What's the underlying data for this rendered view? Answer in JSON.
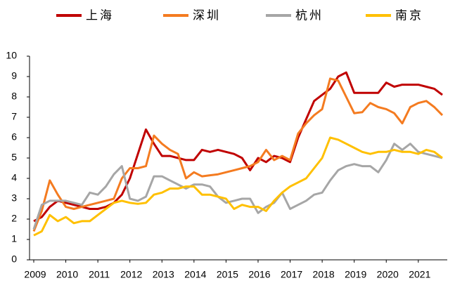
{
  "chart_data": {
    "type": "line",
    "x": [
      2009,
      2009.25,
      2009.5,
      2009.75,
      2010,
      2010.25,
      2010.5,
      2010.75,
      2011,
      2011.25,
      2011.5,
      2011.75,
      2012,
      2012.25,
      2012.5,
      2012.75,
      2013,
      2013.25,
      2013.5,
      2013.75,
      2014,
      2014.25,
      2014.5,
      2014.75,
      2015,
      2015.25,
      2015.5,
      2015.75,
      2016,
      2016.25,
      2016.5,
      2016.75,
      2017,
      2017.25,
      2017.5,
      2017.75,
      2018,
      2018.25,
      2018.5,
      2018.75,
      2019,
      2019.25,
      2019.5,
      2019.75,
      2020,
      2020.25,
      2020.5,
      2020.75,
      2021,
      2021.25,
      2021.5,
      2021.75
    ],
    "series": [
      {
        "name": "上海",
        "color": "#c00000",
        "values": [
          1.9,
          2.1,
          2.6,
          2.9,
          2.8,
          2.7,
          2.6,
          2.5,
          2.5,
          2.6,
          2.8,
          3.2,
          4.0,
          5.2,
          6.4,
          5.7,
          5.1,
          5.1,
          5.0,
          4.9,
          4.9,
          5.4,
          5.3,
          5.4,
          5.3,
          5.2,
          5.0,
          4.4,
          5.0,
          4.8,
          5.1,
          5.0,
          4.8,
          6.0,
          6.9,
          7.8,
          8.1,
          8.4,
          9.0,
          9.2,
          8.2,
          8.2,
          8.2,
          8.2,
          8.7,
          8.5,
          8.6,
          8.6,
          8.6,
          8.5,
          8.4,
          8.1
        ]
      },
      {
        "name": "深圳",
        "color": "#f47b20",
        "values": [
          1.4,
          2.4,
          3.9,
          3.2,
          2.6,
          2.5,
          2.6,
          2.7,
          2.8,
          2.9,
          3.0,
          4.0,
          4.5,
          4.5,
          4.6,
          6.1,
          5.7,
          5.4,
          5.2,
          4.0,
          4.3,
          4.1,
          4.15,
          4.2,
          4.3,
          4.4,
          4.5,
          4.6,
          4.8,
          5.4,
          4.9,
          5.1,
          4.9,
          6.2,
          6.7,
          7.1,
          7.4,
          8.9,
          8.8,
          8.0,
          7.2,
          7.25,
          7.7,
          7.5,
          7.4,
          7.2,
          6.7,
          7.5,
          7.7,
          7.8,
          7.5,
          7.1
        ]
      },
      {
        "name": "杭州",
        "color": "#a6a6a6",
        "values": [
          1.5,
          2.7,
          2.9,
          2.9,
          2.9,
          2.8,
          2.7,
          3.3,
          3.2,
          3.6,
          4.2,
          4.6,
          3.0,
          2.9,
          3.1,
          4.1,
          4.1,
          3.9,
          3.7,
          3.5,
          3.7,
          3.7,
          3.6,
          3.1,
          2.8,
          2.9,
          3.0,
          3.0,
          2.3,
          2.6,
          2.8,
          3.3,
          2.5,
          2.7,
          2.9,
          3.2,
          3.3,
          3.9,
          4.4,
          4.6,
          4.7,
          4.6,
          4.6,
          4.3,
          4.9,
          5.7,
          5.4,
          5.7,
          5.3,
          5.2,
          5.1,
          5.0
        ]
      },
      {
        "name": "南京",
        "color": "#ffc000",
        "values": [
          1.2,
          1.4,
          2.2,
          1.9,
          2.1,
          1.8,
          1.9,
          1.9,
          2.2,
          2.5,
          2.8,
          2.9,
          2.8,
          2.75,
          2.8,
          3.2,
          3.3,
          3.5,
          3.5,
          3.6,
          3.6,
          3.2,
          3.2,
          3.1,
          3.0,
          2.5,
          2.7,
          2.6,
          2.6,
          2.4,
          2.9,
          3.3,
          3.6,
          3.8,
          4.0,
          4.5,
          5.0,
          6.0,
          5.9,
          5.7,
          5.5,
          5.3,
          5.2,
          5.3,
          5.3,
          5.4,
          5.3,
          5.3,
          5.2,
          5.4,
          5.3,
          5.0
        ]
      }
    ],
    "xlim": [
      2009,
      2021.75
    ],
    "xticks": [
      2009,
      2010,
      2011,
      2012,
      2013,
      2014,
      2015,
      2016,
      2017,
      2018,
      2019,
      2020,
      2021
    ],
    "ylim": [
      0,
      10
    ],
    "yticks": [
      0,
      1,
      2,
      3,
      4,
      5,
      6,
      7,
      8,
      9,
      10
    ],
    "grid": false
  }
}
